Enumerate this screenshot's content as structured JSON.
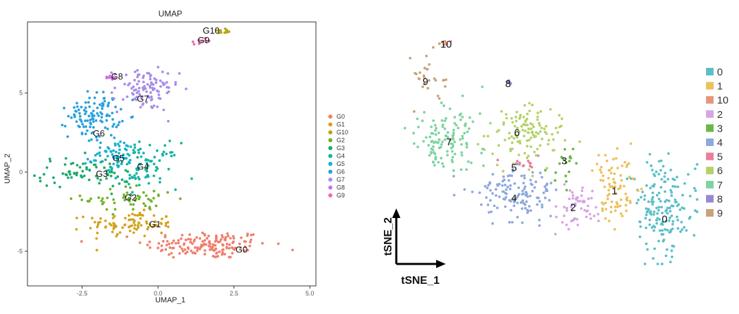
{
  "chart_data": [
    {
      "type": "scatter",
      "title": "UMAP",
      "xlabel": "UMAP_1",
      "ylabel": "UMAP_2",
      "xlim": [
        -4.3,
        5.2
      ],
      "ylim": [
        -7.2,
        9.5
      ],
      "xticks": [
        "-2.5",
        "0.0",
        "2.5",
        "5.0"
      ],
      "yticks": [
        "-5",
        "0",
        "5"
      ],
      "legend_placement": "right",
      "legend": [
        "G0",
        "G1",
        "G10",
        "G2",
        "G3",
        "G4",
        "G5",
        "G6",
        "G7",
        "G8",
        "G9"
      ],
      "colors": {
        "G0": "#f07f6e",
        "G1": "#d4a21e",
        "G10": "#b2a812",
        "G2": "#6fb22a",
        "G3": "#1faa6a",
        "G4": "#13b5a0",
        "G5": "#17b1d0",
        "G6": "#2aa0dd",
        "G7": "#a98bea",
        "G8": "#d46fe0",
        "G9": "#f06ab0"
      },
      "cluster_labels": [
        {
          "text": "G10",
          "x": 1.75,
          "y": 8.9
        },
        {
          "text": "G9",
          "x": 1.5,
          "y": 8.3
        },
        {
          "text": "G8",
          "x": -1.35,
          "y": 6.0
        },
        {
          "text": "G7",
          "x": -0.5,
          "y": 4.6
        },
        {
          "text": "G6",
          "x": -1.95,
          "y": 2.4
        },
        {
          "text": "G5",
          "x": -1.3,
          "y": 0.85
        },
        {
          "text": "G4",
          "x": -0.5,
          "y": 0.3
        },
        {
          "text": "G3",
          "x": -1.85,
          "y": -0.15
        },
        {
          "text": "G2",
          "x": -0.9,
          "y": -1.65
        },
        {
          "text": "G1",
          "x": -0.1,
          "y": -3.35
        },
        {
          "text": "G0",
          "x": 2.75,
          "y": -4.95
        }
      ],
      "series": [
        {
          "name": "G0",
          "center": [
            1.6,
            -4.6
          ],
          "spread": [
            1.7,
            0.75
          ],
          "count": 160
        },
        {
          "name": "G1",
          "center": [
            -0.9,
            -3.3
          ],
          "spread": [
            1.2,
            0.65
          ],
          "count": 90
        },
        {
          "name": "G10",
          "center": [
            2.05,
            8.9
          ],
          "spread": [
            0.2,
            0.12
          ],
          "count": 10
        },
        {
          "name": "G2",
          "center": [
            -0.9,
            -1.7
          ],
          "spread": [
            1.3,
            0.7
          ],
          "count": 55
        },
        {
          "name": "G3",
          "center": [
            -2.3,
            0.0
          ],
          "spread": [
            1.4,
            0.8
          ],
          "count": 80
        },
        {
          "name": "G4",
          "center": [
            -0.4,
            0.4
          ],
          "spread": [
            0.9,
            1.2
          ],
          "count": 80
        },
        {
          "name": "G5",
          "center": [
            -1.4,
            1.1
          ],
          "spread": [
            0.8,
            0.9
          ],
          "count": 60
        },
        {
          "name": "G6",
          "center": [
            -2.1,
            3.6
          ],
          "spread": [
            0.7,
            1.2
          ],
          "count": 110
        },
        {
          "name": "G7",
          "center": [
            -0.4,
            5.2
          ],
          "spread": [
            0.9,
            1.1
          ],
          "count": 100
        },
        {
          "name": "G8",
          "center": [
            -1.6,
            6.0
          ],
          "spread": [
            0.15,
            0.12
          ],
          "count": 8
        },
        {
          "name": "G9",
          "center": [
            1.5,
            8.3
          ],
          "spread": [
            0.25,
            0.18
          ],
          "count": 12
        }
      ]
    },
    {
      "type": "scatter",
      "title": "",
      "xlabel": "tSNE_1",
      "ylabel": "tSNE_2",
      "legend_placement": "right",
      "legend": [
        "0",
        "1",
        "10",
        "2",
        "3",
        "4",
        "5",
        "6",
        "7",
        "8",
        "9"
      ],
      "colors": {
        "0": "#5bbfc7",
        "1": "#edc05d",
        "10": "#e8967a",
        "2": "#d7a4e4",
        "3": "#6bb746",
        "4": "#8ea9dd",
        "5": "#e97f9a",
        "6": "#b5d26a",
        "7": "#7fd3a0",
        "8": "#9a85d6",
        "9": "#c9a27a"
      },
      "cluster_labels": [
        {
          "text": "10",
          "x": 0.15,
          "y": 0.94
        },
        {
          "text": "9",
          "x": 0.08,
          "y": 0.78
        },
        {
          "text": "8",
          "x": 0.36,
          "y": 0.77
        },
        {
          "text": "7",
          "x": 0.16,
          "y": 0.52
        },
        {
          "text": "6",
          "x": 0.39,
          "y": 0.56
        },
        {
          "text": "5",
          "x": 0.38,
          "y": 0.41
        },
        {
          "text": "3",
          "x": 0.55,
          "y": 0.44
        },
        {
          "text": "1",
          "x": 0.72,
          "y": 0.31
        },
        {
          "text": "4",
          "x": 0.38,
          "y": 0.28
        },
        {
          "text": "2",
          "x": 0.58,
          "y": 0.24
        },
        {
          "text": "0",
          "x": 0.89,
          "y": 0.19
        }
      ],
      "series": [
        {
          "name": "0",
          "center": [
            0.88,
            0.23
          ],
          "spread": [
            0.07,
            0.16
          ],
          "count": 170
        },
        {
          "name": "1",
          "center": [
            0.72,
            0.33
          ],
          "spread": [
            0.05,
            0.13
          ],
          "count": 80
        },
        {
          "name": "10",
          "center": [
            0.15,
            0.95
          ],
          "spread": [
            0.02,
            0.01
          ],
          "count": 6
        },
        {
          "name": "2",
          "center": [
            0.6,
            0.25
          ],
          "spread": [
            0.05,
            0.09
          ],
          "count": 55
        },
        {
          "name": "3",
          "center": [
            0.56,
            0.44
          ],
          "spread": [
            0.03,
            0.06
          ],
          "count": 18
        },
        {
          "name": "4",
          "center": [
            0.38,
            0.29
          ],
          "spread": [
            0.09,
            0.07
          ],
          "count": 130
        },
        {
          "name": "5",
          "center": [
            0.42,
            0.43
          ],
          "spread": [
            0.04,
            0.02
          ],
          "count": 12
        },
        {
          "name": "6",
          "center": [
            0.43,
            0.56
          ],
          "spread": [
            0.09,
            0.08
          ],
          "count": 120
        },
        {
          "name": "7",
          "center": [
            0.15,
            0.56
          ],
          "spread": [
            0.07,
            0.11
          ],
          "count": 120
        },
        {
          "name": "8",
          "center": [
            0.36,
            0.78
          ],
          "spread": [
            0.01,
            0.01
          ],
          "count": 4
        },
        {
          "name": "9",
          "center": [
            0.09,
            0.8
          ],
          "spread": [
            0.04,
            0.07
          ],
          "count": 28
        }
      ]
    }
  ]
}
